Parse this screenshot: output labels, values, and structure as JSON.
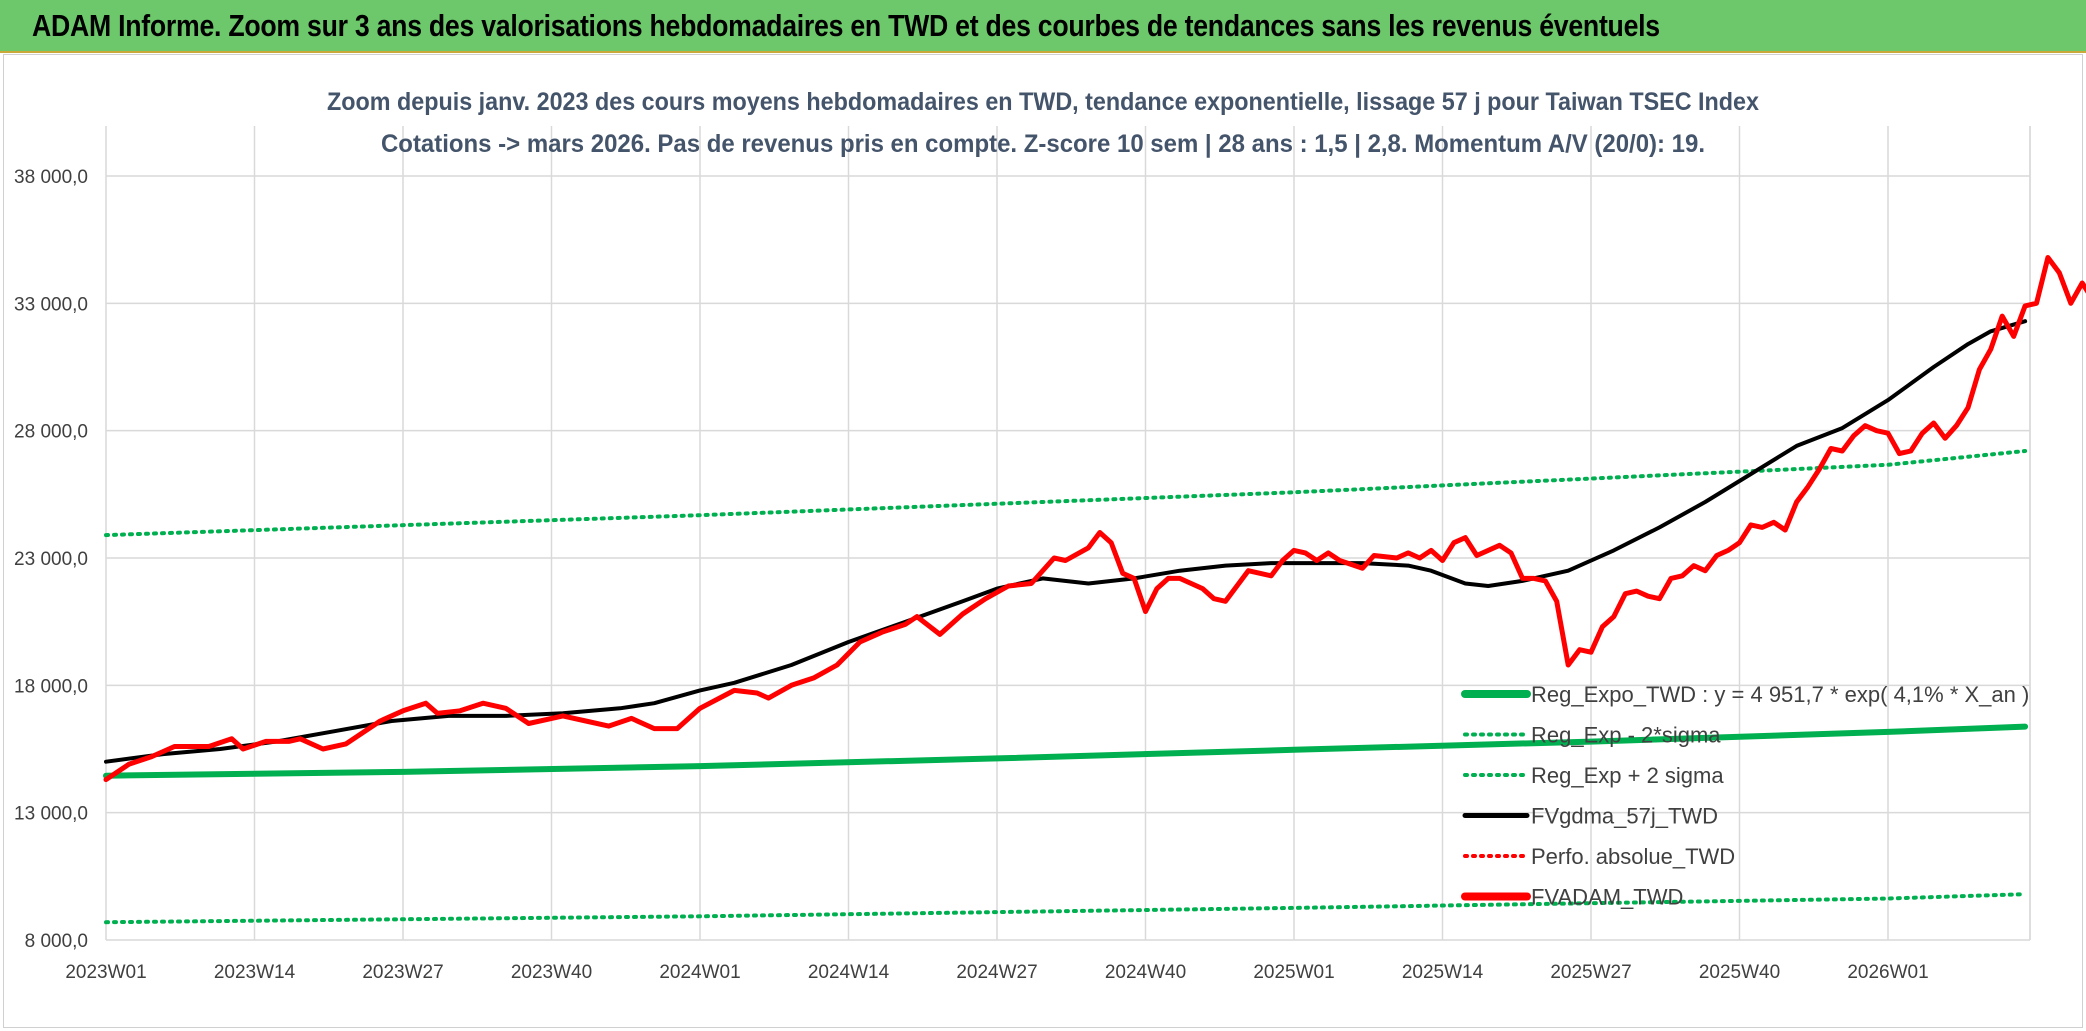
{
  "banner": {
    "title": "ADAM Informe. Zoom sur 3 ans des valorisations hebdomadaires en TWD et des courbes de tendances sans les revenus éventuels",
    "background_color": "#6cc86a"
  },
  "chart_data": {
    "type": "line",
    "title_lines": [
      "Zoom depuis janv. 2023 des cours moyens hebdomadaires en TWD, tendance exponentielle, lissage 57 j pour Taiwan TSEC Index",
      "Cotations -> mars 2026. Pas de revenus pris en compte. Z-score 10 sem | 28 ans : 1,5 | 2,8. Momentum A/V (20/0): 19."
    ],
    "x_tick_labels": [
      "2023W01",
      "2023W14",
      "2023W27",
      "2023W40",
      "2024W01",
      "2024W14",
      "2024W27",
      "2024W40",
      "2025W01",
      "2025W14",
      "2025W27",
      "2025W40",
      "2026W01"
    ],
    "x_tick_step_weeks": 13,
    "x_total_weeks": 168,
    "ylim": [
      8000,
      38000
    ],
    "y_ticks": [
      8000,
      13000,
      18000,
      23000,
      28000,
      33000,
      38000
    ],
    "y_tick_labels": [
      "8 000,0",
      "13 000,0",
      "18 000,0",
      "23 000,0",
      "28 000,0",
      "33 000,0",
      "38 000,0"
    ],
    "grid": true,
    "legend_position": "bottom-right",
    "series": [
      {
        "name": "Reg_Expo_TWD : y = 4 951,7 * exp( 4,1% *  X_an )",
        "color": "#00b050",
        "style": "solid-thick",
        "points": [
          [
            0,
            14450
          ],
          [
            26,
            14600
          ],
          [
            52,
            14830
          ],
          [
            78,
            15130
          ],
          [
            104,
            15470
          ],
          [
            130,
            15790
          ],
          [
            156,
            16170
          ],
          [
            168,
            16380
          ]
        ]
      },
      {
        "name": "Reg_Exp - 2*sigma",
        "color": "#00b050",
        "style": "dotted",
        "points": [
          [
            0,
            8700
          ],
          [
            52,
            8930
          ],
          [
            104,
            9260
          ],
          [
            156,
            9630
          ],
          [
            168,
            9800
          ]
        ]
      },
      {
        "name": "Reg_Exp + 2 sigma",
        "color": "#00b050",
        "style": "dotted",
        "points": [
          [
            0,
            23900
          ],
          [
            52,
            24680
          ],
          [
            104,
            25580
          ],
          [
            156,
            26660
          ],
          [
            168,
            27200
          ]
        ]
      },
      {
        "name": "FVgdma_57j_TWD",
        "color": "#000000",
        "style": "solid",
        "points": [
          [
            0,
            15000
          ],
          [
            5,
            15300
          ],
          [
            10,
            15500
          ],
          [
            15,
            15800
          ],
          [
            20,
            16200
          ],
          [
            25,
            16600
          ],
          [
            30,
            16800
          ],
          [
            35,
            16800
          ],
          [
            40,
            16900
          ],
          [
            45,
            17100
          ],
          [
            48,
            17300
          ],
          [
            52,
            17800
          ],
          [
            55,
            18100
          ],
          [
            60,
            18800
          ],
          [
            65,
            19700
          ],
          [
            70,
            20500
          ],
          [
            75,
            21300
          ],
          [
            78,
            21800
          ],
          [
            82,
            22200
          ],
          [
            86,
            22000
          ],
          [
            90,
            22200
          ],
          [
            94,
            22500
          ],
          [
            98,
            22700
          ],
          [
            102,
            22800
          ],
          [
            106,
            22800
          ],
          [
            110,
            22800
          ],
          [
            114,
            22700
          ],
          [
            116,
            22500
          ],
          [
            119,
            22000
          ],
          [
            121,
            21900
          ],
          [
            124,
            22100
          ],
          [
            128,
            22500
          ],
          [
            132,
            23300
          ],
          [
            136,
            24200
          ],
          [
            140,
            25200
          ],
          [
            144,
            26300
          ],
          [
            148,
            27400
          ],
          [
            152,
            28100
          ],
          [
            156,
            29200
          ],
          [
            160,
            30500
          ],
          [
            163,
            31400
          ],
          [
            165,
            31900
          ],
          [
            168,
            32300
          ]
        ]
      },
      {
        "name": "Perfo. absolue_TWD",
        "color": "#ff0000",
        "style": "dotted",
        "points": []
      },
      {
        "name": "FVADAM_TWD",
        "color": "#ff0000",
        "style": "solid-thick",
        "points": [
          [
            0,
            14300
          ],
          [
            2,
            14900
          ],
          [
            4,
            15200
          ],
          [
            6,
            15600
          ],
          [
            9,
            15600
          ],
          [
            11,
            15900
          ],
          [
            12,
            15500
          ],
          [
            14,
            15800
          ],
          [
            16,
            15800
          ],
          [
            17,
            15900
          ],
          [
            19,
            15500
          ],
          [
            21,
            15700
          ],
          [
            24,
            16600
          ],
          [
            26,
            17000
          ],
          [
            28,
            17300
          ],
          [
            29,
            16900
          ],
          [
            31,
            17000
          ],
          [
            33,
            17300
          ],
          [
            35,
            17100
          ],
          [
            37,
            16500
          ],
          [
            40,
            16800
          ],
          [
            42,
            16600
          ],
          [
            44,
            16400
          ],
          [
            46,
            16700
          ],
          [
            48,
            16300
          ],
          [
            50,
            16300
          ],
          [
            52,
            17100
          ],
          [
            55,
            17800
          ],
          [
            57,
            17700
          ],
          [
            58,
            17500
          ],
          [
            60,
            18000
          ],
          [
            62,
            18300
          ],
          [
            64,
            18800
          ],
          [
            66,
            19700
          ],
          [
            68,
            20100
          ],
          [
            70,
            20400
          ],
          [
            71,
            20700
          ],
          [
            73,
            20000
          ],
          [
            75,
            20800
          ],
          [
            77,
            21400
          ],
          [
            79,
            21900
          ],
          [
            81,
            22000
          ],
          [
            83,
            23000
          ],
          [
            84,
            22900
          ],
          [
            86,
            23400
          ],
          [
            87,
            24000
          ],
          [
            88,
            23600
          ],
          [
            89,
            22400
          ],
          [
            90,
            22200
          ],
          [
            91,
            20900
          ],
          [
            92,
            21800
          ],
          [
            93,
            22200
          ],
          [
            94,
            22200
          ],
          [
            96,
            21800
          ],
          [
            97,
            21400
          ],
          [
            98,
            21300
          ],
          [
            100,
            22500
          ],
          [
            102,
            22300
          ],
          [
            103,
            22900
          ],
          [
            104,
            23300
          ],
          [
            105,
            23200
          ],
          [
            106,
            22900
          ],
          [
            107,
            23200
          ],
          [
            108,
            22900
          ],
          [
            110,
            22600
          ],
          [
            111,
            23100
          ],
          [
            113,
            23000
          ],
          [
            114,
            23200
          ],
          [
            115,
            23000
          ],
          [
            116,
            23300
          ],
          [
            117,
            22900
          ],
          [
            118,
            23600
          ],
          [
            119,
            23800
          ],
          [
            120,
            23100
          ],
          [
            122,
            23500
          ],
          [
            123,
            23200
          ],
          [
            124,
            22200
          ],
          [
            125,
            22200
          ],
          [
            126,
            22100
          ],
          [
            127,
            21300
          ],
          [
            128,
            18800
          ],
          [
            129,
            19400
          ],
          [
            130,
            19300
          ],
          [
            131,
            20300
          ],
          [
            132,
            20700
          ],
          [
            133,
            21600
          ],
          [
            134,
            21700
          ],
          [
            135,
            21500
          ],
          [
            136,
            21400
          ],
          [
            137,
            22200
          ],
          [
            138,
            22300
          ],
          [
            139,
            22700
          ],
          [
            140,
            22500
          ],
          [
            141,
            23100
          ],
          [
            142,
            23300
          ],
          [
            143,
            23600
          ],
          [
            144,
            24300
          ],
          [
            145,
            24200
          ],
          [
            146,
            24400
          ],
          [
            147,
            24100
          ],
          [
            148,
            25200
          ],
          [
            149,
            25800
          ],
          [
            150,
            26500
          ],
          [
            151,
            27300
          ],
          [
            152,
            27200
          ],
          [
            153,
            27800
          ],
          [
            154,
            28200
          ],
          [
            155,
            28000
          ],
          [
            156,
            27900
          ],
          [
            157,
            27100
          ],
          [
            158,
            27200
          ],
          [
            159,
            27900
          ],
          [
            160,
            28300
          ],
          [
            161,
            27700
          ],
          [
            162,
            28200
          ],
          [
            163,
            28900
          ],
          [
            164,
            30400
          ],
          [
            165,
            31200
          ],
          [
            166,
            32500
          ],
          [
            167,
            31700
          ],
          [
            168,
            32900
          ],
          [
            169,
            33000
          ],
          [
            170,
            34800
          ],
          [
            171,
            34200
          ],
          [
            172,
            33000
          ],
          [
            173,
            33800
          ],
          [
            174,
            33100
          ]
        ]
      }
    ]
  }
}
